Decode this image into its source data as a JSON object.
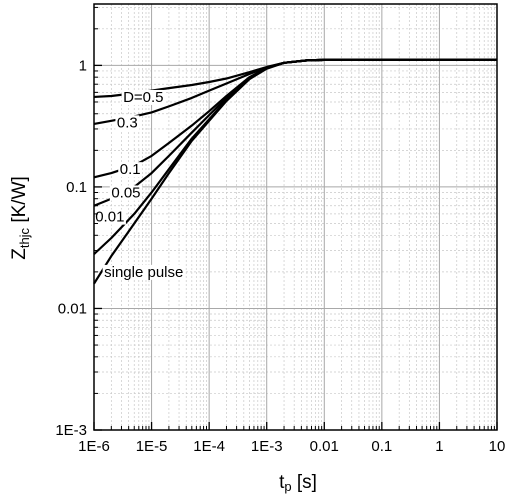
{
  "chart_data": {
    "type": "line",
    "xlabel": {
      "main": "t",
      "sub": "p",
      "rest": " [s]"
    },
    "ylabel": {
      "main": "Z",
      "sub": "thjc",
      "rest": " [K/W]"
    },
    "xscale": "log",
    "yscale": "log",
    "xlim": [
      1e-06,
      10
    ],
    "ylim": [
      0.001,
      3.2
    ],
    "grid": true,
    "legend": "none",
    "x_ticks": [
      {
        "value": 1e-06,
        "label": "1E-6"
      },
      {
        "value": 1e-05,
        "label": "1E-5"
      },
      {
        "value": 0.0001,
        "label": "1E-4"
      },
      {
        "value": 0.001,
        "label": "1E-3"
      },
      {
        "value": 0.01,
        "label": "0.01"
      },
      {
        "value": 0.1,
        "label": "0.1"
      },
      {
        "value": 1,
        "label": "1"
      },
      {
        "value": 10,
        "label": "10"
      }
    ],
    "y_ticks": [
      {
        "value": 0.001,
        "label": "1E-3"
      },
      {
        "value": 0.01,
        "label": "0.01"
      },
      {
        "value": 0.1,
        "label": "0.1"
      },
      {
        "value": 1,
        "label": "1"
      }
    ],
    "series": [
      {
        "name": "D=0.5",
        "x": [
          1e-06,
          2e-06,
          5e-06,
          1e-05,
          2e-05,
          5e-05,
          0.0001,
          0.0002,
          0.0005,
          0.001,
          0.002,
          0.005,
          0.01,
          0.1,
          1,
          10
        ],
        "y": [
          0.55,
          0.56,
          0.59,
          0.62,
          0.65,
          0.69,
          0.73,
          0.78,
          0.88,
          0.97,
          1.05,
          1.1,
          1.11,
          1.11,
          1.11,
          1.11
        ]
      },
      {
        "name": "0.3",
        "x": [
          1e-06,
          2e-06,
          5e-06,
          1e-05,
          2e-05,
          5e-05,
          0.0001,
          0.0002,
          0.0005,
          0.001,
          0.002,
          0.005,
          0.01,
          0.1,
          1,
          10
        ],
        "y": [
          0.33,
          0.35,
          0.38,
          0.41,
          0.46,
          0.54,
          0.62,
          0.71,
          0.85,
          0.96,
          1.05,
          1.1,
          1.11,
          1.11,
          1.11,
          1.11
        ]
      },
      {
        "name": "0.1",
        "x": [
          1e-06,
          2e-06,
          5e-06,
          1e-05,
          2e-05,
          5e-05,
          0.0001,
          0.0002,
          0.0005,
          0.001,
          0.002,
          0.005,
          0.01,
          0.1,
          1,
          10
        ],
        "y": [
          0.12,
          0.13,
          0.15,
          0.18,
          0.23,
          0.32,
          0.42,
          0.56,
          0.8,
          0.95,
          1.05,
          1.1,
          1.11,
          1.11,
          1.11,
          1.11
        ]
      },
      {
        "name": "0.05",
        "x": [
          1e-06,
          2e-06,
          5e-06,
          1e-05,
          2e-05,
          5e-05,
          0.0001,
          0.0002,
          0.0005,
          0.001,
          0.002,
          0.005,
          0.01,
          0.1,
          1,
          10
        ],
        "y": [
          0.07,
          0.08,
          0.1,
          0.13,
          0.18,
          0.28,
          0.39,
          0.54,
          0.79,
          0.95,
          1.05,
          1.1,
          1.11,
          1.11,
          1.11,
          1.11
        ]
      },
      {
        "name": "0.01",
        "x": [
          1e-06,
          2e-06,
          5e-06,
          1e-05,
          2e-05,
          5e-05,
          0.0001,
          0.0002,
          0.0005,
          0.001,
          0.002,
          0.005,
          0.01,
          0.1,
          1,
          10
        ],
        "y": [
          0.028,
          0.038,
          0.06,
          0.09,
          0.14,
          0.25,
          0.36,
          0.52,
          0.78,
          0.95,
          1.05,
          1.1,
          1.11,
          1.11,
          1.11,
          1.11
        ]
      },
      {
        "name": "single pulse",
        "x": [
          1e-06,
          2e-06,
          5e-06,
          1e-05,
          2e-05,
          5e-05,
          0.0001,
          0.0002,
          0.0005,
          0.001,
          0.002,
          0.005,
          0.01,
          0.1,
          1,
          10
        ],
        "y": [
          0.016,
          0.027,
          0.05,
          0.08,
          0.13,
          0.24,
          0.35,
          0.51,
          0.77,
          0.94,
          1.05,
          1.1,
          1.11,
          1.11,
          1.11,
          1.11
        ]
      }
    ],
    "annotations": [
      {
        "text": "D=0.5",
        "x": 3.2e-06,
        "y": 0.55,
        "series": "D=0.5"
      },
      {
        "text": "0.3",
        "x": 2.5e-06,
        "y": 0.34,
        "series": "0.3"
      },
      {
        "text": "0.1",
        "x": 2.8e-06,
        "y": 0.14,
        "series": "0.1"
      },
      {
        "text": "0.05",
        "x": 2e-06,
        "y": 0.09,
        "series": "0.05"
      },
      {
        "text": "0.01",
        "x": 1.05e-06,
        "y": 0.057,
        "series": "0.01"
      },
      {
        "text": "single pulse",
        "x": 1.5e-06,
        "y": 0.02,
        "series": "single pulse"
      }
    ]
  }
}
